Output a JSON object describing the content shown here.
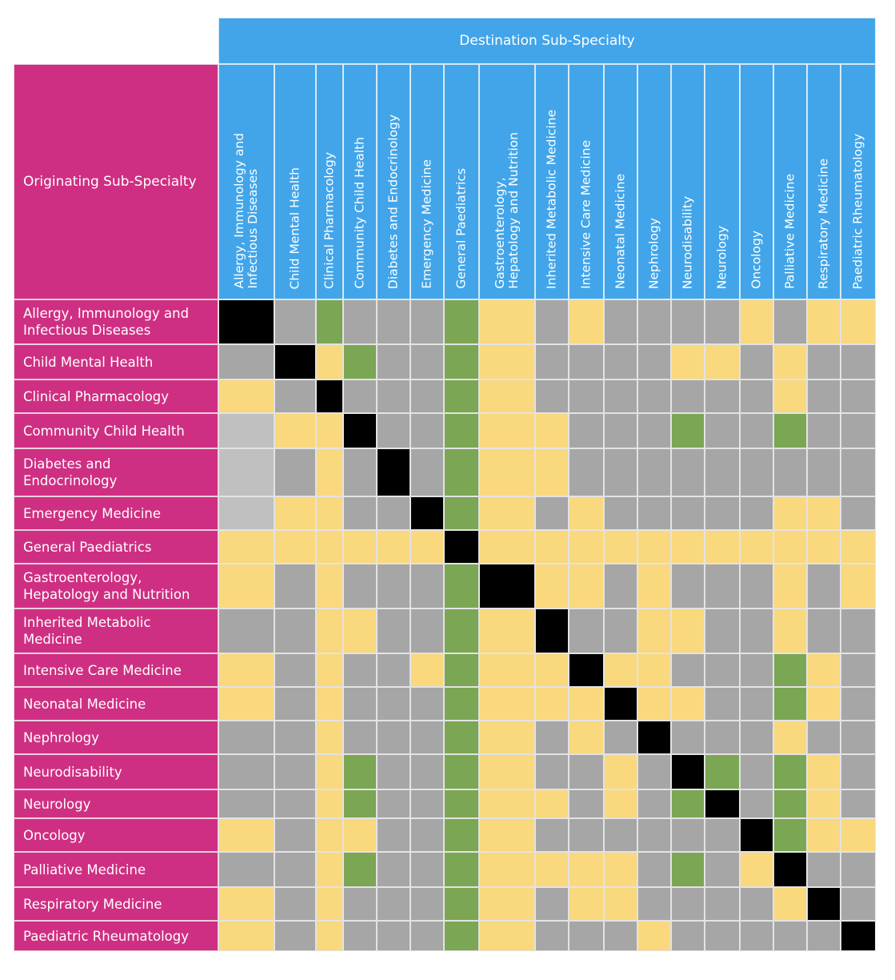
{
  "chart_data": {
    "type": "heatmap",
    "title": "",
    "xlabel": "Destination Sub-Specialty",
    "ylabel": "Originating Sub-Specialty",
    "columns": [
      "Allergy, Immunology and\nInfectious Diseases",
      "Child Mental Health",
      "Clinical Pharmacology",
      "Community Child Health",
      "Diabetes and Endocrinology",
      "Emergency Medicine",
      "General Paediatrics",
      "Gastroenterology,\nHepatology and Nutrition",
      "Inherited Metabolic Medicine",
      "Intensive Care Medicine",
      "Neonatal Medicine",
      "Nephrology",
      "Neurodisability",
      "Neurology",
      "Oncology",
      "Palliative Medicine",
      "Respiratory Medicine",
      "Paediatric Rheumatology"
    ],
    "rows": [
      "Allergy, Immunology and\nInfectious Diseases",
      "Child Mental Health",
      "Clinical Pharmacology",
      "Community Child Health",
      "Diabetes and\nEndocrinology",
      "Emergency Medicine",
      "General Paediatrics",
      "Gastroenterology,\nHepatology and Nutrition",
      "Inherited Metabolic\nMedicine",
      "Intensive Care Medicine",
      "Neonatal Medicine",
      "Nephrology",
      "Neurodisability",
      "Neurology",
      "Oncology",
      "Palliative Medicine",
      "Respiratory Medicine",
      "Paediatric Rheumatology"
    ],
    "cell_categories": {
      "X": "#000000",
      "G": "#7ba653",
      "Y": "#f9d87e",
      "D": "#a6a6a6",
      "L": "#c0c0c0"
    },
    "cells": [
      [
        "X",
        "D",
        "G",
        "D",
        "D",
        "D",
        "G",
        "Y",
        "D",
        "Y",
        "D",
        "D",
        "D",
        "D",
        "Y",
        "D",
        "Y",
        "Y"
      ],
      [
        "D",
        "X",
        "Y",
        "G",
        "D",
        "D",
        "G",
        "Y",
        "D",
        "D",
        "D",
        "D",
        "Y",
        "Y",
        "D",
        "Y",
        "D",
        "D"
      ],
      [
        "Y",
        "D",
        "X",
        "D",
        "D",
        "D",
        "G",
        "Y",
        "D",
        "D",
        "D",
        "D",
        "D",
        "D",
        "D",
        "Y",
        "D",
        "D"
      ],
      [
        "L",
        "Y",
        "Y",
        "X",
        "D",
        "D",
        "G",
        "Y",
        "Y",
        "D",
        "D",
        "D",
        "G",
        "D",
        "D",
        "G",
        "D",
        "D"
      ],
      [
        "L",
        "D",
        "Y",
        "D",
        "X",
        "D",
        "G",
        "Y",
        "Y",
        "D",
        "D",
        "D",
        "D",
        "D",
        "D",
        "D",
        "D",
        "D"
      ],
      [
        "L",
        "Y",
        "Y",
        "D",
        "D",
        "X",
        "G",
        "Y",
        "D",
        "Y",
        "D",
        "D",
        "D",
        "D",
        "D",
        "Y",
        "Y",
        "D"
      ],
      [
        "Y",
        "Y",
        "Y",
        "Y",
        "Y",
        "Y",
        "X",
        "Y",
        "Y",
        "Y",
        "Y",
        "Y",
        "Y",
        "Y",
        "Y",
        "Y",
        "Y",
        "Y"
      ],
      [
        "Y",
        "D",
        "Y",
        "D",
        "D",
        "D",
        "G",
        "X",
        "Y",
        "Y",
        "D",
        "Y",
        "D",
        "D",
        "D",
        "Y",
        "D",
        "Y"
      ],
      [
        "D",
        "D",
        "Y",
        "Y",
        "D",
        "D",
        "G",
        "Y",
        "X",
        "D",
        "D",
        "Y",
        "Y",
        "D",
        "D",
        "Y",
        "D",
        "D"
      ],
      [
        "Y",
        "D",
        "Y",
        "D",
        "D",
        "Y",
        "G",
        "Y",
        "Y",
        "X",
        "Y",
        "Y",
        "D",
        "D",
        "D",
        "G",
        "Y",
        "D"
      ],
      [
        "Y",
        "D",
        "Y",
        "D",
        "D",
        "D",
        "G",
        "Y",
        "Y",
        "Y",
        "X",
        "Y",
        "Y",
        "D",
        "D",
        "G",
        "Y",
        "D"
      ],
      [
        "D",
        "D",
        "Y",
        "D",
        "D",
        "D",
        "G",
        "Y",
        "D",
        "Y",
        "D",
        "X",
        "D",
        "D",
        "D",
        "Y",
        "D",
        "D"
      ],
      [
        "D",
        "D",
        "Y",
        "G",
        "D",
        "D",
        "G",
        "Y",
        "D",
        "D",
        "Y",
        "D",
        "X",
        "G",
        "D",
        "G",
        "Y",
        "D"
      ],
      [
        "D",
        "D",
        "Y",
        "G",
        "D",
        "D",
        "G",
        "Y",
        "Y",
        "D",
        "Y",
        "D",
        "G",
        "X",
        "D",
        "G",
        "Y",
        "D"
      ],
      [
        "Y",
        "D",
        "Y",
        "Y",
        "D",
        "D",
        "G",
        "Y",
        "D",
        "D",
        "D",
        "D",
        "D",
        "D",
        "X",
        "G",
        "Y",
        "Y"
      ],
      [
        "D",
        "D",
        "Y",
        "G",
        "D",
        "D",
        "G",
        "Y",
        "Y",
        "Y",
        "Y",
        "D",
        "G",
        "D",
        "Y",
        "X",
        "D",
        "D"
      ],
      [
        "Y",
        "D",
        "Y",
        "D",
        "D",
        "D",
        "G",
        "Y",
        "D",
        "Y",
        "Y",
        "D",
        "D",
        "D",
        "D",
        "Y",
        "X",
        "D"
      ],
      [
        "Y",
        "D",
        "Y",
        "D",
        "D",
        "D",
        "G",
        "Y",
        "D",
        "D",
        "D",
        "Y",
        "D",
        "D",
        "D",
        "D",
        "D",
        "X"
      ]
    ]
  }
}
